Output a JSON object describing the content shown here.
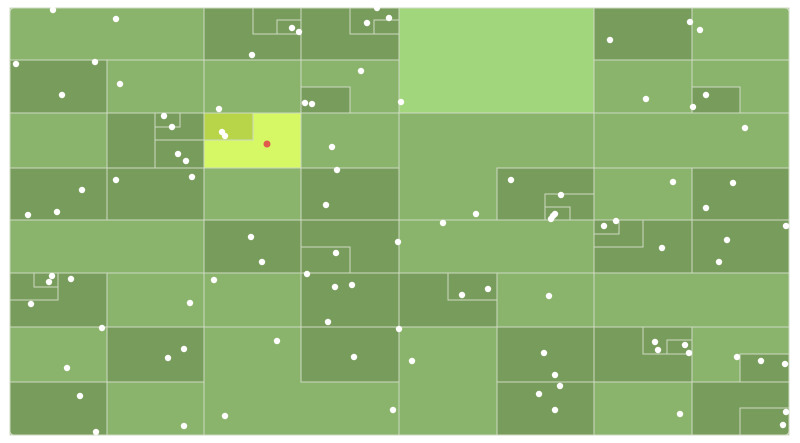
{
  "colors": {
    "background": "#ffffff",
    "border": "#cfdac3",
    "light": "#8ab46b",
    "dark": "#779c5b",
    "highlight_large": "#a1d67c",
    "selected_region": "#d6f864",
    "selected_subregion": "#b8d449",
    "point": "#ffffff",
    "selected_point": "#e05a4e"
  }
}
